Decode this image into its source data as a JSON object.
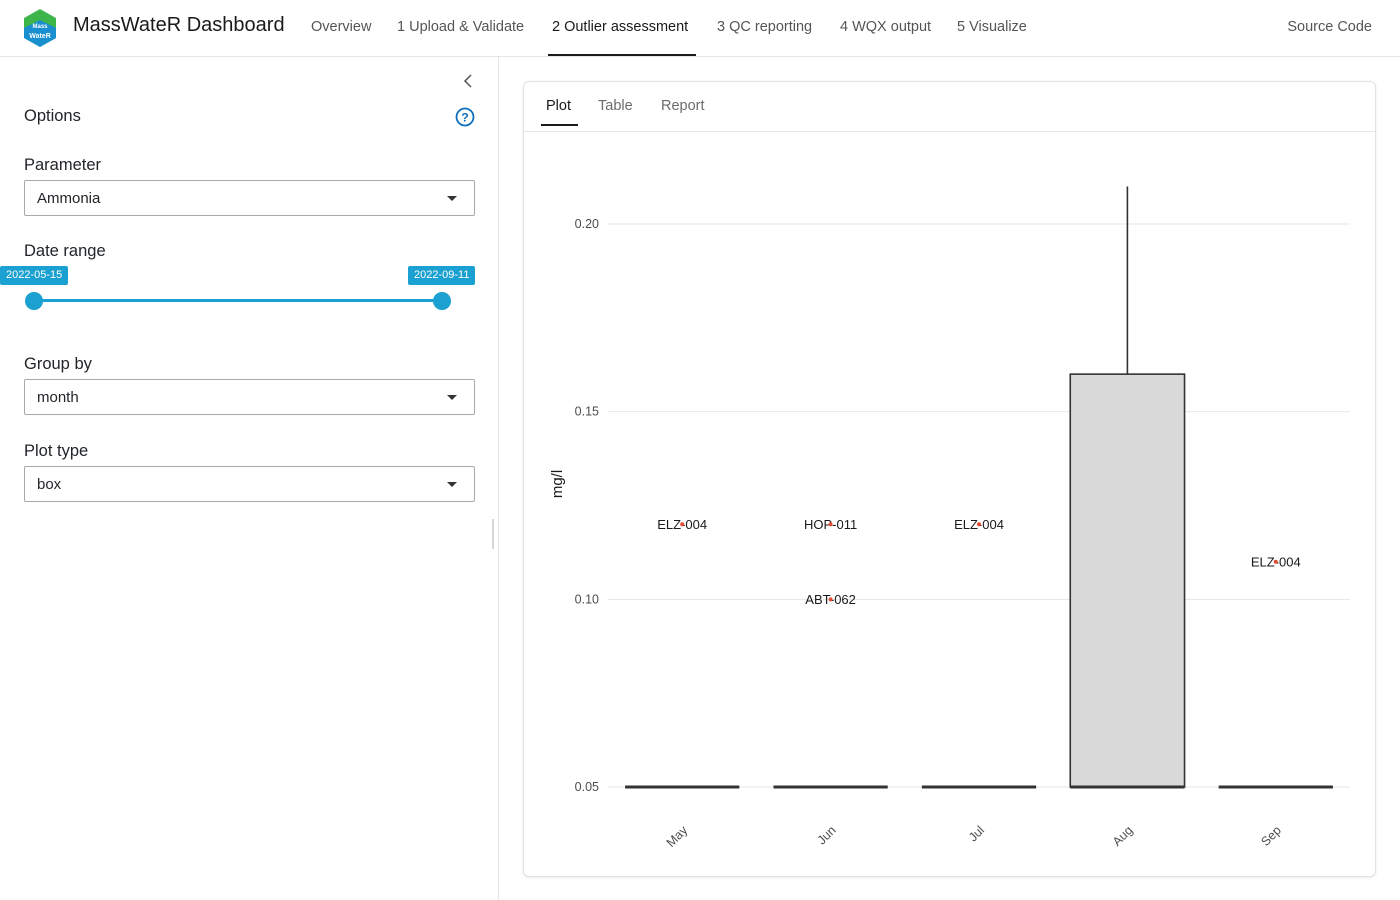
{
  "header": {
    "brand": "MassWateR Dashboard",
    "logo_text_top": "Mass",
    "logo_text_bottom": "WateR",
    "tabs": [
      {
        "label": "Overview"
      },
      {
        "label": "1 Upload & Validate"
      },
      {
        "label": "2 Outlier assessment"
      },
      {
        "label": "3 QC reporting"
      },
      {
        "label": "4 WQX output"
      },
      {
        "label": "5 Visualize"
      }
    ],
    "active_tab": 2,
    "source_code": "Source Code"
  },
  "sidebar": {
    "title": "Options",
    "parameter": {
      "label": "Parameter",
      "value": "Ammonia"
    },
    "date_range": {
      "label": "Date range",
      "start": "2022-05-15",
      "end": "2022-09-11"
    },
    "group_by": {
      "label": "Group by",
      "value": "month"
    },
    "plot_type": {
      "label": "Plot type",
      "value": "box"
    }
  },
  "main": {
    "tabs": [
      {
        "label": "Plot"
      },
      {
        "label": "Table"
      },
      {
        "label": "Report"
      }
    ],
    "active_tab": 0
  },
  "colors": {
    "accent": "#1aa0d1",
    "box_fill": "#d9d9d9",
    "outlier_point": "#e34a33",
    "logo_green": "#3db54a",
    "logo_blue": "#1a8fd0"
  },
  "chart_data": {
    "type": "box",
    "ylabel": "mg/l",
    "xlabel": "",
    "categories": [
      "May",
      "Jun",
      "Jul",
      "Aug",
      "Sep"
    ],
    "yticks": [
      0.05,
      0.1,
      0.15,
      0.2
    ],
    "ytick_labels": [
      "0.05",
      "0.10",
      "0.15",
      "0.20"
    ],
    "ylim": [
      0.045,
      0.215
    ],
    "grid": true,
    "boxes": [
      {
        "category": "May",
        "min": 0.05,
        "q1": 0.05,
        "median": 0.05,
        "q3": 0.05,
        "max": 0.05
      },
      {
        "category": "Jun",
        "min": 0.05,
        "q1": 0.05,
        "median": 0.05,
        "q3": 0.05,
        "max": 0.05
      },
      {
        "category": "Jul",
        "min": 0.05,
        "q1": 0.05,
        "median": 0.05,
        "q3": 0.05,
        "max": 0.05
      },
      {
        "category": "Aug",
        "min": 0.05,
        "q1": 0.05,
        "median": 0.05,
        "q3": 0.16,
        "max": 0.21
      },
      {
        "category": "Sep",
        "min": 0.05,
        "q1": 0.05,
        "median": 0.05,
        "q3": 0.05,
        "max": 0.05
      }
    ],
    "outliers": [
      {
        "category": "May",
        "value": 0.12,
        "label": "ELZ-004"
      },
      {
        "category": "Jun",
        "value": 0.12,
        "label": "HOP-011"
      },
      {
        "category": "Jun",
        "value": 0.1,
        "label": "ABT-062"
      },
      {
        "category": "Jul",
        "value": 0.12,
        "label": "ELZ-004"
      },
      {
        "category": "Sep",
        "value": 0.11,
        "label": "ELZ-004"
      }
    ]
  }
}
